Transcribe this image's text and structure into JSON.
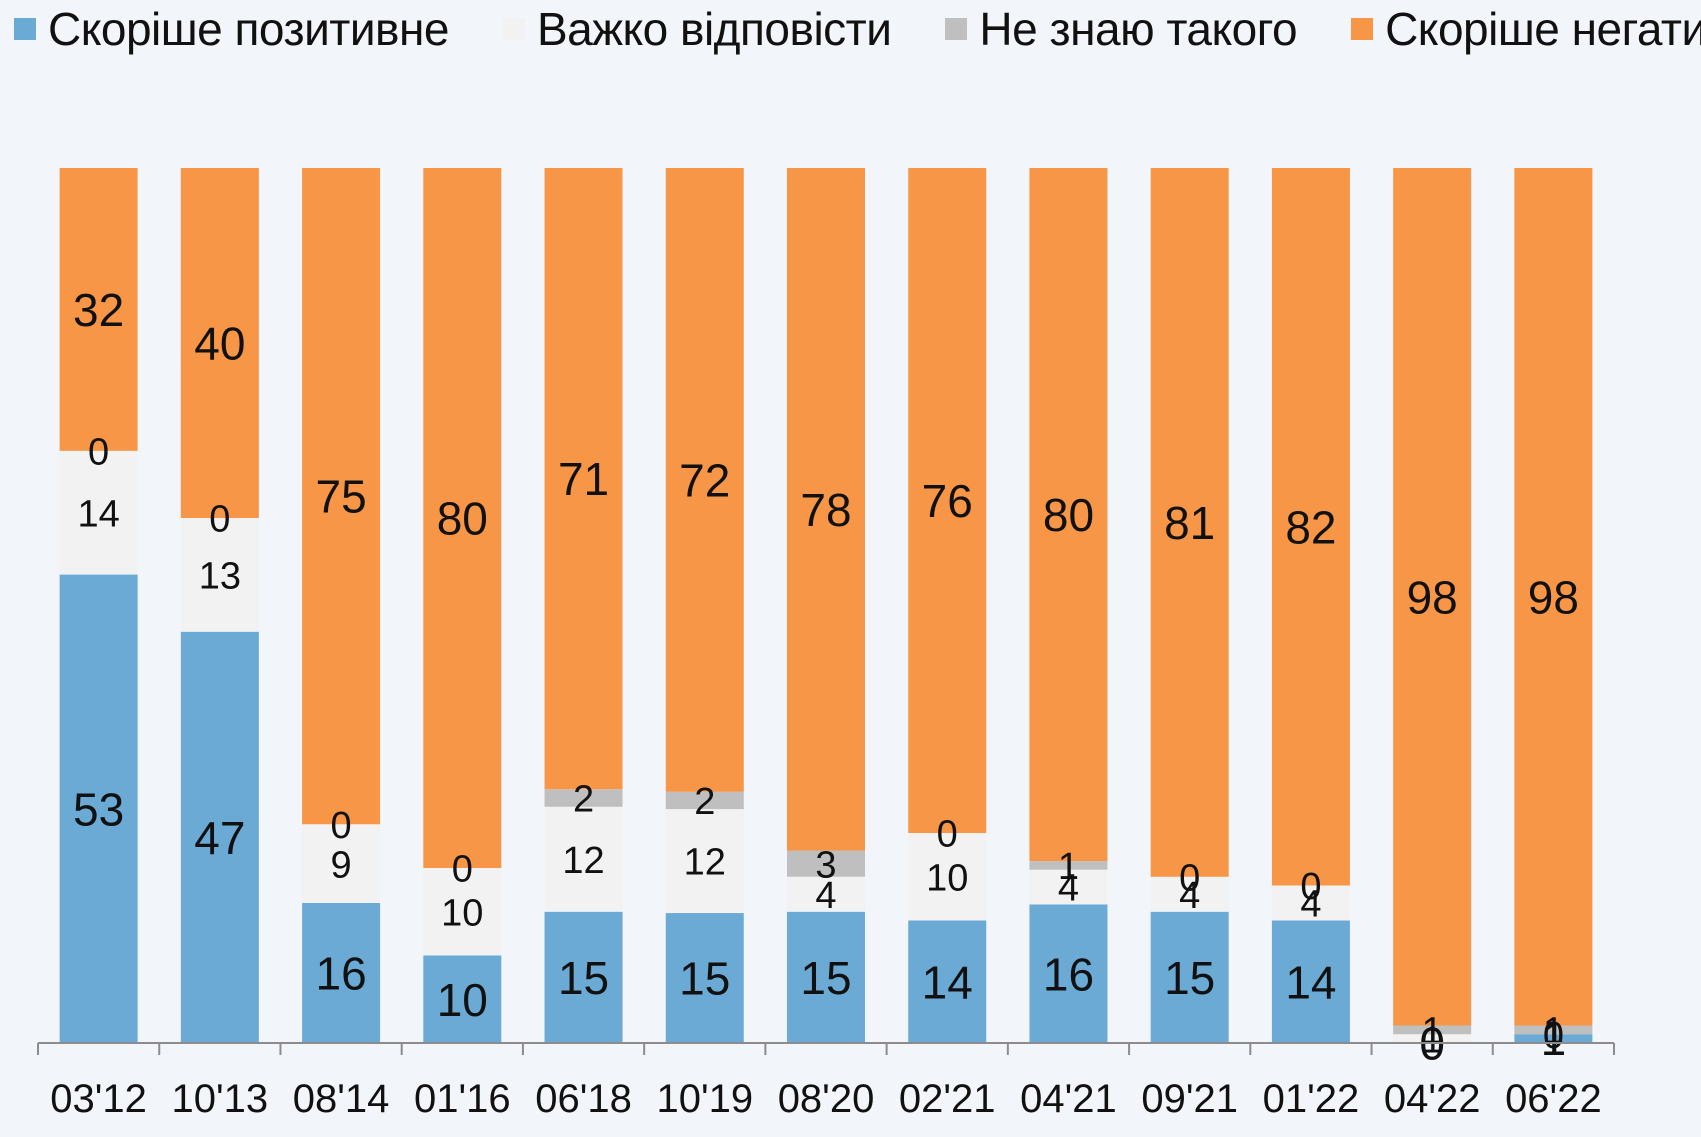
{
  "chart_data": {
    "type": "bar",
    "stacked": true,
    "categories": [
      "03'12",
      "10'13",
      "08'14",
      "01'16",
      "06'18",
      "10'19",
      "08'20",
      "02'21",
      "04'21",
      "09'21",
      "01'22",
      "04'22",
      "06'22"
    ],
    "series": [
      {
        "name": "Скоріше позитивне",
        "color": "#6aaad5",
        "values": [
          53,
          47,
          16,
          10,
          15,
          15,
          15,
          14,
          16,
          15,
          14,
          0,
          1
        ]
      },
      {
        "name": "Важко відповісти",
        "color": "#f2f2f2",
        "values": [
          14,
          13,
          9,
          10,
          12,
          12,
          4,
          10,
          4,
          4,
          4,
          1,
          0
        ]
      },
      {
        "name": "Не знаю такого",
        "color": "#bfbfbf",
        "values": [
          0,
          0,
          0,
          0,
          2,
          2,
          3,
          0,
          1,
          0,
          0,
          1,
          1
        ]
      },
      {
        "name": "Скоріше негативне",
        "color": "#f79646",
        "values": [
          32,
          40,
          75,
          80,
          71,
          72,
          78,
          76,
          80,
          81,
          82,
          98,
          98
        ]
      }
    ],
    "legend_position": "top",
    "grid": false,
    "ylim": [
      0,
      100
    ],
    "title": "",
    "xlabel": "",
    "ylabel": ""
  }
}
